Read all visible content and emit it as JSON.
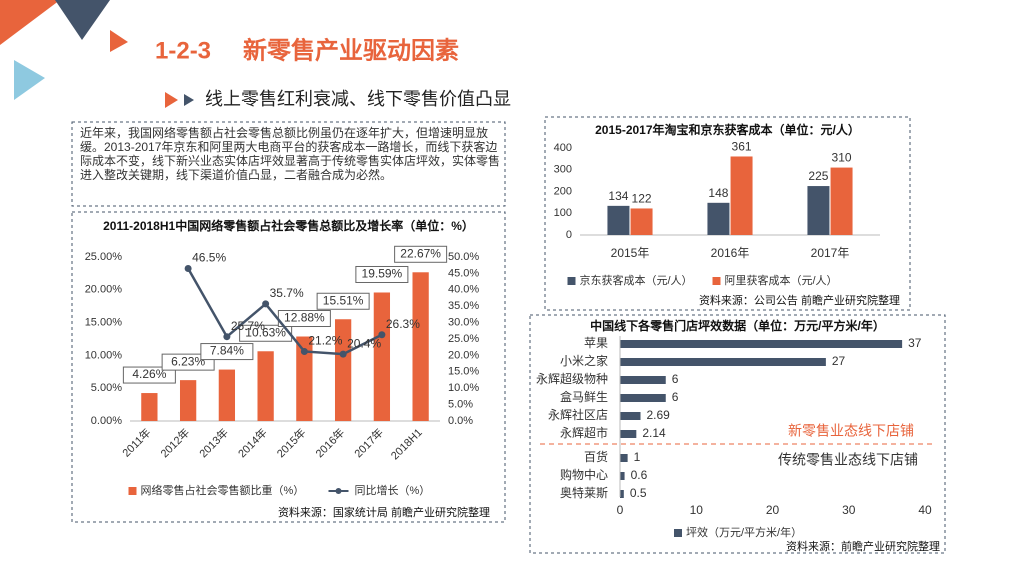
{
  "header": {
    "section": "1-2-3",
    "title": "新零售产业驱动因素",
    "subtitle": "线上零售红利衰减、线下零售价值凸显"
  },
  "intro": "近年来，我国网络零售额占社会零售总额比例虽仍在逐年扩大，但增速明显放缓。2013-2017年京东和阿里两大电商平台的获客成本一路增长，而线下获客边际成本不变，线下新兴业态实体店坪效显著高于传统零售实体店坪效，实体零售进入整改关键期，线下渠道价值凸显，二者融合成为必然。",
  "chart_data": [
    {
      "type": "bar",
      "title": "2011-2018H1中国网络零售额占社会零售总额比及增长率（单位：%）",
      "categories": [
        "2011年",
        "2012年",
        "2013年",
        "2014年",
        "2015年",
        "2016年",
        "2017年",
        "2018H1"
      ],
      "series": [
        {
          "name": "网络零售占社会零售额比重（%）",
          "color": "#e8643c",
          "values": [
            4.26,
            6.23,
            7.84,
            10.63,
            12.88,
            15.51,
            19.59,
            22.67
          ],
          "value_labels": [
            "4.26%",
            "6.23%",
            "7.84%",
            "10.63%",
            "12.88%",
            "15.51%",
            "19.59%",
            "22.67%"
          ]
        },
        {
          "name": "同比增长（%）",
          "color": "#44546a",
          "axis": "y2",
          "values": [
            null,
            46.5,
            25.7,
            35.7,
            21.2,
            20.4,
            26.3,
            null
          ],
          "value_labels": [
            null,
            "46.5%",
            "25.7%",
            "35.7%",
            "21.2%",
            "20.4%",
            "26.3%",
            null
          ]
        }
      ],
      "ylim": [
        0,
        25
      ],
      "yticks": [
        {
          "value": 0,
          "label": "0.00%"
        },
        {
          "value": 5,
          "label": "5.00%"
        },
        {
          "value": 10,
          "label": "10.00%"
        },
        {
          "value": 15,
          "label": "15.00%"
        },
        {
          "value": 20,
          "label": "20.00%"
        },
        {
          "value": 25,
          "label": "25.00%"
        }
      ],
      "y2lim": [
        0,
        50
      ],
      "y2ticks": [
        {
          "value": 0,
          "label": "0.0%"
        },
        {
          "value": 5,
          "label": "5.0%"
        },
        {
          "value": 10,
          "label": "10.0%"
        },
        {
          "value": 15,
          "label": "15.0%"
        },
        {
          "value": 20,
          "label": "20.0%"
        },
        {
          "value": 25,
          "label": "25.0%"
        },
        {
          "value": 30,
          "label": "30.0%"
        },
        {
          "value": 35,
          "label": "35.0%"
        },
        {
          "value": 40,
          "label": "40.0%"
        },
        {
          "value": 45,
          "label": "45.0%"
        },
        {
          "value": 50,
          "label": "50.0%"
        }
      ],
      "source": "资料来源：国家统计局 前瞻产业研究院整理"
    },
    {
      "type": "bar",
      "title": "2015-2017年淘宝和京东获客成本（单位：元/人）",
      "categories": [
        "2015年",
        "2016年",
        "2017年"
      ],
      "series": [
        {
          "name": "京东获客成本（元/人）",
          "color": "#44546a",
          "values": [
            134,
            148,
            225
          ]
        },
        {
          "name": "阿里获客成本（元/人）",
          "color": "#e8643c",
          "values": [
            122,
            361,
            310
          ]
        }
      ],
      "ylim": [
        0,
        400
      ],
      "yticks": [
        0,
        100,
        200,
        300,
        400
      ],
      "source": "资料来源：公司公告 前瞻产业研究院整理"
    },
    {
      "type": "hbar",
      "title": "中国线下各零售门店坪效数据（单位：万元/平方米/年）",
      "categories": [
        "苹果",
        "小米之家",
        "永辉超级物种",
        "盒马鲜生",
        "永辉社区店",
        "永辉超市",
        "百货",
        "购物中心",
        "奥特莱斯"
      ],
      "series": [
        {
          "name": "坪效（万元/平方米/年）",
          "color": "#44546a",
          "values": [
            37,
            27,
            6,
            6,
            2.69,
            2.14,
            1,
            0.6,
            0.5
          ]
        }
      ],
      "xlim": [
        0,
        40
      ],
      "xticks": [
        0,
        10,
        20,
        30,
        40
      ],
      "annotations": [
        "新零售业态线下店铺",
        "传统零售业态线下店铺"
      ],
      "source": "资料来源：前瞻产业研究院整理"
    }
  ]
}
